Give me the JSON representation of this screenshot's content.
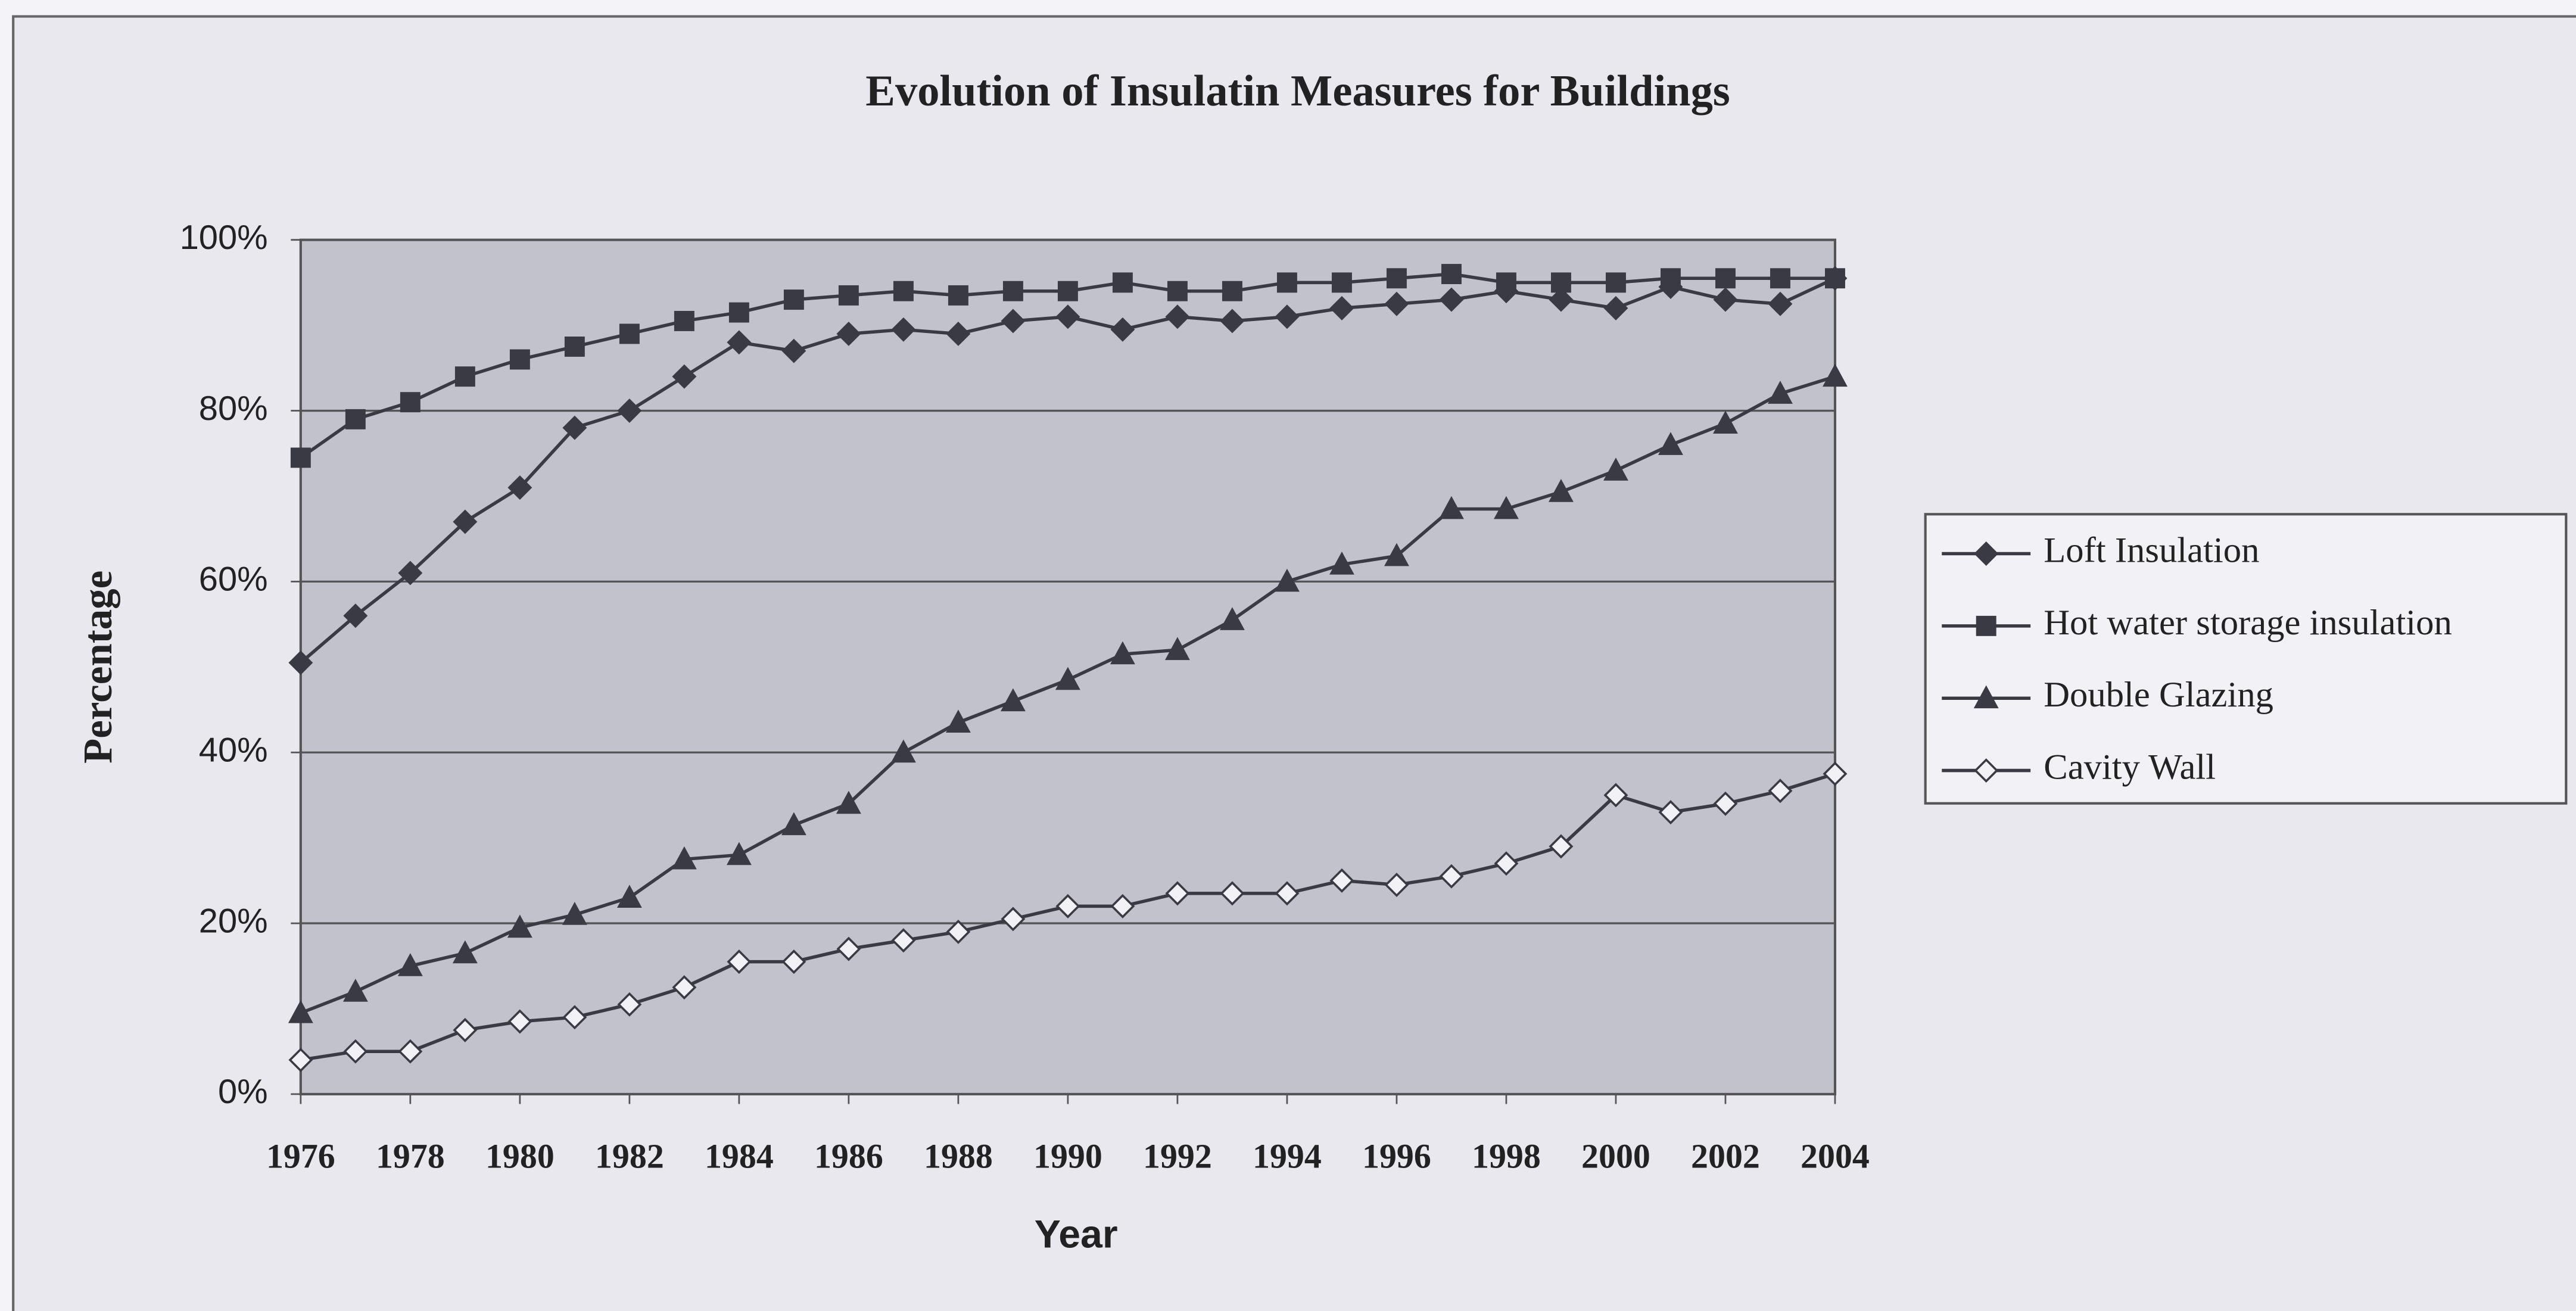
{
  "chart_data": {
    "type": "line",
    "title": "Evolution of Insulatin Measures for Buildings",
    "x_label": "Year",
    "y_label": "Percentage",
    "x": [
      1976,
      1977,
      1978,
      1979,
      1980,
      1981,
      1982,
      1983,
      1984,
      1985,
      1986,
      1987,
      1988,
      1989,
      1990,
      1991,
      1992,
      1993,
      1994,
      1995,
      1996,
      1997,
      1998,
      1999,
      2000,
      2001,
      2002,
      2003,
      2004
    ],
    "xlim": [
      1976,
      2004
    ],
    "xticks": [
      1976,
      1978,
      1980,
      1982,
      1984,
      1986,
      1988,
      1990,
      1992,
      1994,
      1996,
      1998,
      2000,
      2002,
      2004
    ],
    "ylim": [
      0,
      100
    ],
    "yticks": [
      {
        "value": 0,
        "label": "0%"
      },
      {
        "value": 20,
        "label": "20%"
      },
      {
        "value": 40,
        "label": "40%"
      },
      {
        "value": 60,
        "label": "60%"
      },
      {
        "value": 80,
        "label": "80%"
      },
      {
        "value": 100,
        "label": "100%"
      }
    ],
    "grid": true,
    "legend": "right",
    "series": [
      {
        "name": "Loft Insulation",
        "color": "#3a3a44",
        "marker": "diamond",
        "values": [
          50.5,
          56,
          61,
          67,
          71,
          78,
          80,
          84,
          88,
          87,
          89,
          89.5,
          89,
          90.5,
          91,
          89.5,
          91,
          90.5,
          91,
          92,
          92.5,
          93,
          94,
          93,
          92,
          94.5,
          93,
          92.5,
          95.5
        ]
      },
      {
        "name": "Hot water storage insulation",
        "color": "#3a3a44",
        "marker": "square",
        "values": [
          74.5,
          79,
          81,
          84,
          86,
          87.5,
          89,
          90.5,
          91.5,
          93,
          93.5,
          94,
          93.5,
          94,
          94,
          95,
          94,
          94,
          95,
          95,
          95.5,
          96,
          95,
          95,
          95,
          95.5,
          95.5,
          95.5,
          95.5
        ]
      },
      {
        "name": "Double Glazing",
        "color": "#3a3a44",
        "marker": "triangle",
        "values": [
          9.5,
          12,
          15,
          16.5,
          19.5,
          21,
          23,
          27.5,
          28,
          31.5,
          34,
          40,
          43.5,
          46,
          48.5,
          51.5,
          52,
          55.5,
          60,
          62,
          63,
          68.5,
          68.5,
          70.5,
          73,
          76,
          78.5,
          82,
          84
        ]
      },
      {
        "name": "Cavity Wall",
        "color": "#3a3a44",
        "marker": "open-diamond",
        "values": [
          4,
          5,
          5,
          7.5,
          8.5,
          9,
          10.5,
          12.5,
          15.5,
          15.5,
          17,
          18,
          19,
          20.5,
          22,
          22,
          23.5,
          23.5,
          23.5,
          25,
          24.5,
          25.5,
          27,
          29,
          35,
          33,
          34,
          35.5,
          37.5
        ]
      }
    ]
  }
}
